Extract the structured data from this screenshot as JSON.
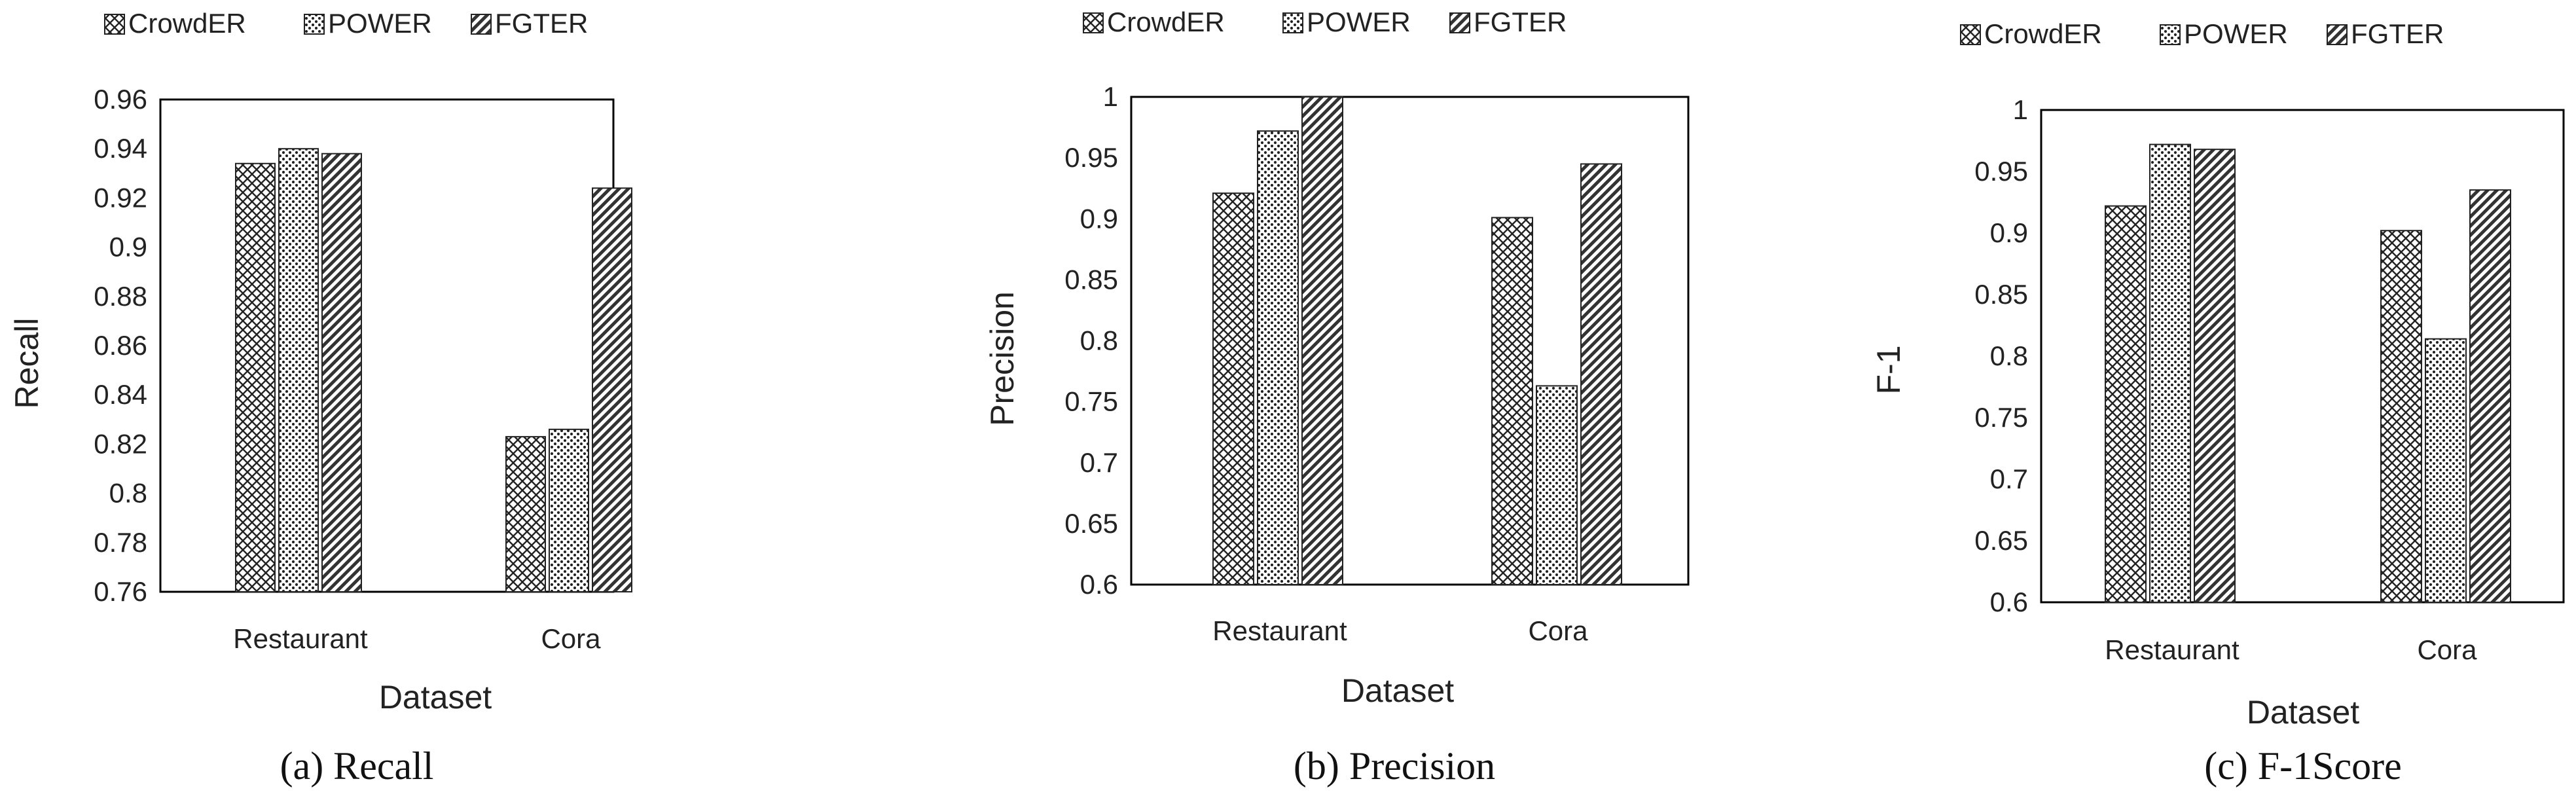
{
  "chart_data": [
    {
      "type": "bar",
      "title": "",
      "caption": "(a) Recall",
      "xlabel": "Dataset",
      "ylabel": "Recall",
      "categories": [
        "Restaurant",
        "Cora"
      ],
      "ylim": [
        0.76,
        0.96
      ],
      "yticks": [
        0.76,
        0.78,
        0.8,
        0.82,
        0.84,
        0.86,
        0.88,
        0.9,
        0.92,
        0.94,
        0.96
      ],
      "ytick_labels": [
        "0.76",
        "0.78",
        "0.8",
        "0.82",
        "0.84",
        "0.86",
        "0.88",
        "0.9",
        "0.92",
        "0.94",
        "0.96"
      ],
      "legend_position": "top",
      "series": [
        {
          "name": "CrowdER",
          "values": [
            0.934,
            0.823
          ]
        },
        {
          "name": "POWER",
          "values": [
            0.94,
            0.826
          ]
        },
        {
          "name": "FGTER",
          "values": [
            0.938,
            0.924
          ]
        }
      ]
    },
    {
      "type": "bar",
      "title": "",
      "caption": "(b) Precision",
      "xlabel": "Dataset",
      "ylabel": "Precision",
      "categories": [
        "Restaurant",
        "Cora"
      ],
      "ylim": [
        0.6,
        1.0
      ],
      "yticks": [
        0.6,
        0.65,
        0.7,
        0.75,
        0.8,
        0.85,
        0.9,
        0.95,
        1.0
      ],
      "ytick_labels": [
        "0.6",
        "0.65",
        "0.7",
        "0.75",
        "0.8",
        "0.85",
        "0.9",
        "0.95",
        "1"
      ],
      "legend_position": "top",
      "series": [
        {
          "name": "CrowdER",
          "values": [
            0.921,
            0.901
          ]
        },
        {
          "name": "POWER",
          "values": [
            0.972,
            0.763
          ]
        },
        {
          "name": "FGTER",
          "values": [
            1.0,
            0.945
          ]
        }
      ]
    },
    {
      "type": "bar",
      "title": "",
      "caption": "(c) F-1Score",
      "xlabel": "Dataset",
      "ylabel": "F-1",
      "categories": [
        "Restaurant",
        "Cora"
      ],
      "ylim": [
        0.6,
        1.0
      ],
      "yticks": [
        0.6,
        0.65,
        0.7,
        0.75,
        0.8,
        0.85,
        0.9,
        0.95,
        1.0
      ],
      "ytick_labels": [
        "0.6",
        "0.65",
        "0.7",
        "0.75",
        "0.8",
        "0.85",
        "0.9",
        "0.95",
        "1"
      ],
      "legend_position": "top",
      "series": [
        {
          "name": "CrowdER",
          "values": [
            0.922,
            0.902
          ]
        },
        {
          "name": "POWER",
          "values": [
            0.972,
            0.814
          ]
        },
        {
          "name": "FGTER",
          "values": [
            0.968,
            0.935
          ]
        }
      ]
    }
  ]
}
